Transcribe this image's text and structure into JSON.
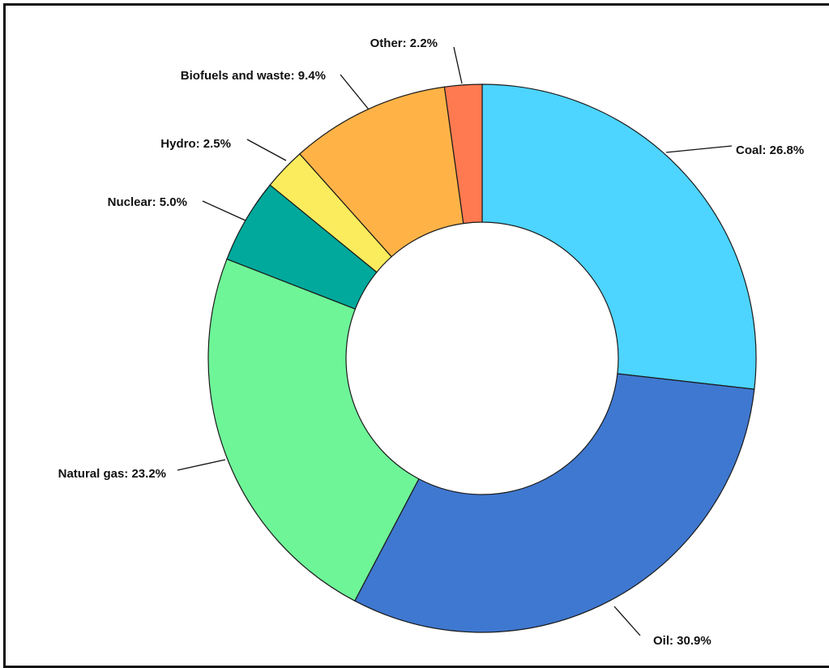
{
  "chart_data": {
    "type": "pie",
    "donut": true,
    "categories": [
      "Coal",
      "Oil",
      "Natural gas",
      "Nuclear",
      "Hydro",
      "Biofuels and waste",
      "Other"
    ],
    "values": [
      26.8,
      30.9,
      23.2,
      5.0,
      2.5,
      9.4,
      2.2
    ],
    "labels": [
      "Coal: 26.8%",
      "Oil: 30.9%",
      "Natural gas: 23.2%",
      "Nuclear: 5.0%",
      "Hydro: 2.5%",
      "Biofuels and waste: 9.4%",
      "Other: 2.2%"
    ],
    "colors": [
      "#4dd4ff",
      "#3f78d0",
      "#6ef598",
      "#00a99b",
      "#fbec5d",
      "#ffb347",
      "#ff7a50"
    ],
    "start_angle_deg": 0,
    "direction": "clockwise"
  }
}
